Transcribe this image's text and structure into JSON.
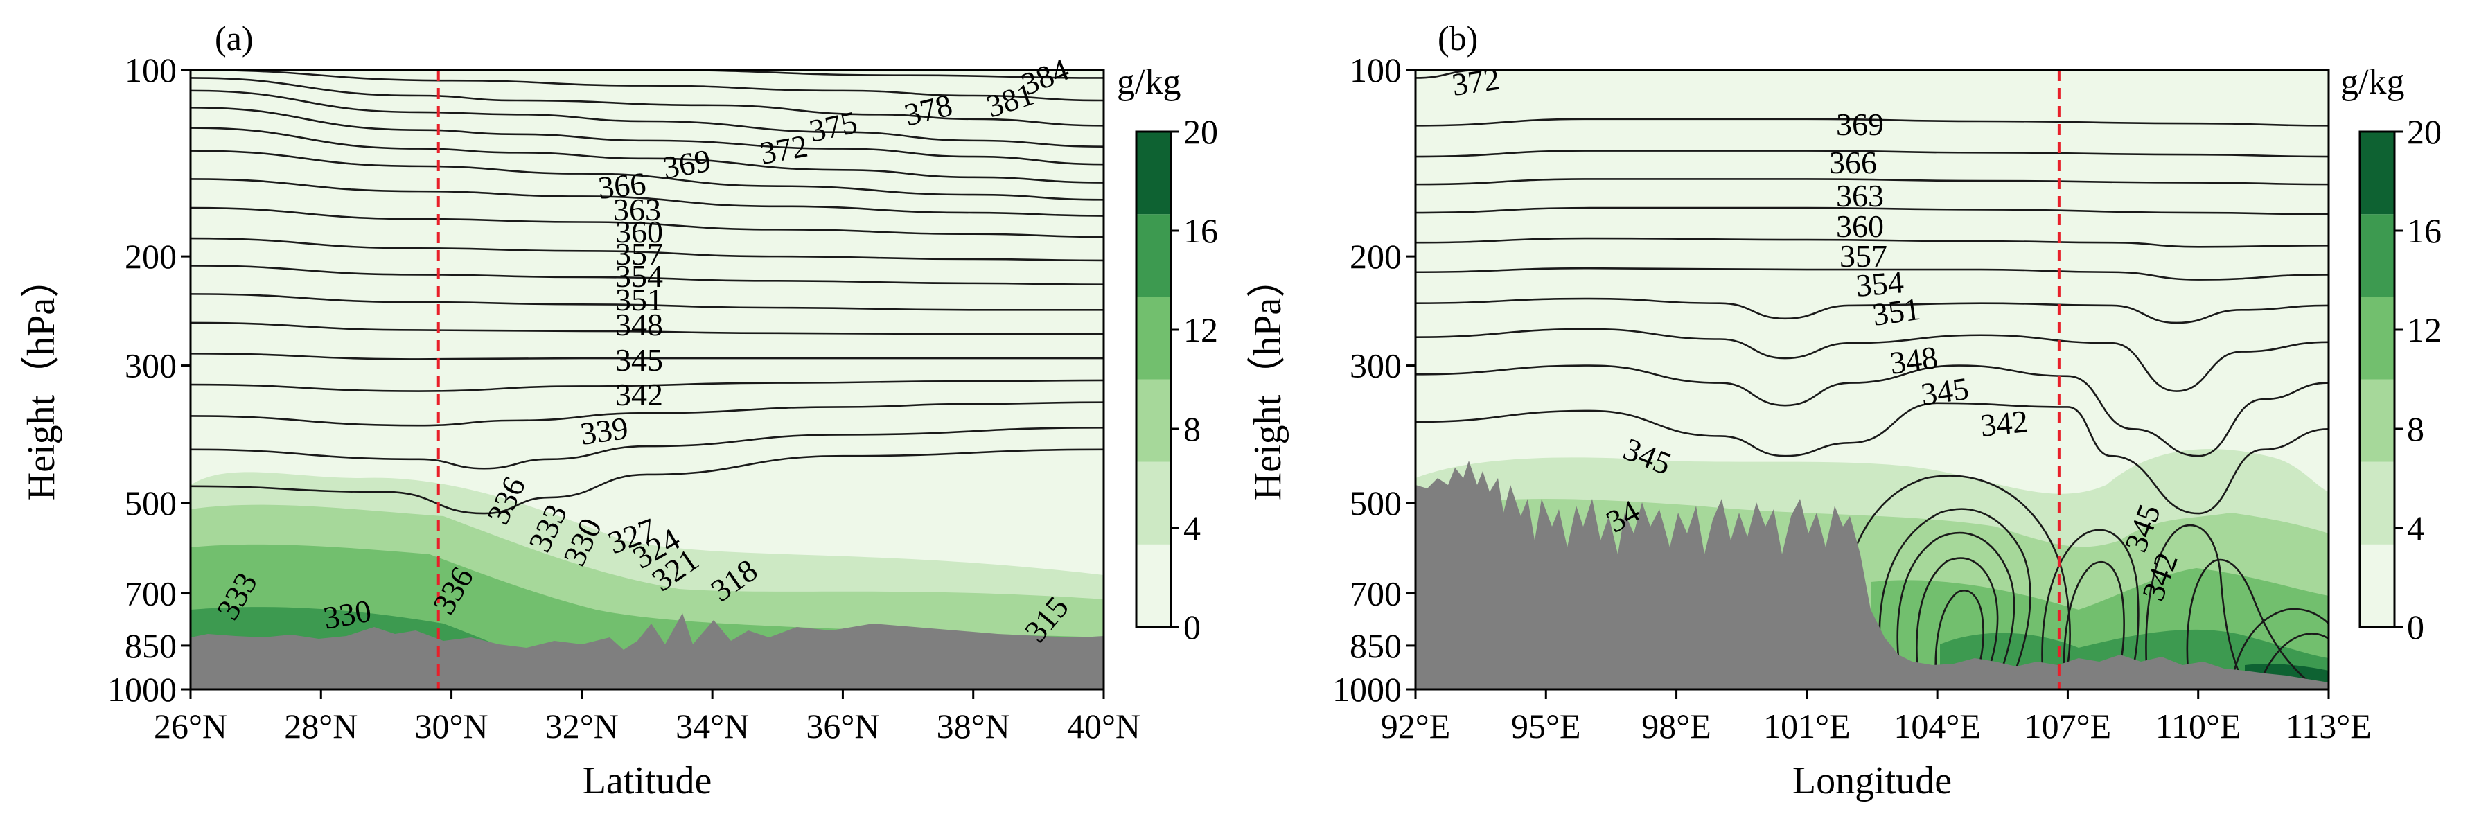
{
  "chart_data": [
    {
      "type": "contour",
      "panel_label": "(a)",
      "xlabel": "Latitude",
      "ylabel": "Height（hPa）",
      "x_ticks": [
        "26°N",
        "28°N",
        "30°N",
        "32°N",
        "34°N",
        "36°N",
        "38°N",
        "40°N"
      ],
      "x_tick_values": [
        26,
        28,
        30,
        32,
        34,
        36,
        38,
        40
      ],
      "xlim": [
        26,
        40
      ],
      "y_ticks": [
        "100",
        "200",
        "300",
        "500",
        "700",
        "850",
        "1000"
      ],
      "y_tick_values": [
        100,
        200,
        300,
        500,
        700,
        850,
        1000
      ],
      "ylim": [
        1000,
        100
      ],
      "y_scale": "log",
      "reference_line": {
        "x": 29.8,
        "style": "dashed",
        "color": "#e8202a"
      },
      "shading": {
        "variable_unit": "g/kg",
        "levels": [
          0,
          4,
          8,
          12,
          16,
          20
        ]
      },
      "contour_labels": [
        "369",
        "366",
        "363",
        "360",
        "357",
        "354",
        "351",
        "348",
        "345",
        "342",
        "339",
        "372",
        "375",
        "378",
        "381",
        "384",
        "336",
        "333",
        "330",
        "327",
        "324",
        "321",
        "318",
        "333",
        "330",
        "336",
        "315"
      ],
      "contours": [
        {
          "v": 384,
          "p": [
            [
              26,
              100
            ],
            [
              30,
              100
            ],
            [
              33,
              100
            ],
            [
              37,
              102
            ],
            [
              40,
              103
            ]
          ]
        },
        {
          "v": 381,
          "p": [
            [
              26,
              100
            ],
            [
              30,
              104
            ],
            [
              33,
              106
            ],
            [
              36,
              108
            ],
            [
              38,
              110
            ],
            [
              40,
              112
            ]
          ]
        },
        {
          "v": 378,
          "p": [
            [
              26,
              103
            ],
            [
              29.5,
              110
            ],
            [
              31,
              112
            ],
            [
              34,
              114
            ],
            [
              36.5,
              118
            ],
            [
              38,
              120
            ],
            [
              40,
              123
            ]
          ]
        },
        {
          "v": 375,
          "p": [
            [
              26,
              108
            ],
            [
              29.5,
              117
            ],
            [
              31,
              118
            ],
            [
              33,
              121
            ],
            [
              36,
              126
            ],
            [
              38,
              130
            ],
            [
              40,
              133
            ]
          ]
        },
        {
          "v": 372,
          "p": [
            [
              26,
              115
            ],
            [
              29.5,
              125
            ],
            [
              31,
              127
            ],
            [
              33,
              130
            ],
            [
              36,
              134
            ],
            [
              38,
              138
            ],
            [
              40,
              142
            ]
          ]
        },
        {
          "v": 369,
          "p": [
            [
              26,
              124
            ],
            [
              29.5,
              134
            ],
            [
              31,
              136
            ],
            [
              33,
              139
            ],
            [
              36,
              145
            ],
            [
              38,
              149
            ],
            [
              40,
              152
            ]
          ]
        },
        {
          "v": 366,
          "p": [
            [
              26,
              135
            ],
            [
              29.5,
              143
            ],
            [
              32,
              147
            ],
            [
              35,
              154
            ],
            [
              38,
              159
            ],
            [
              40,
              162
            ]
          ]
        },
        {
          "v": 363,
          "p": [
            [
              26,
              150
            ],
            [
              29.5,
              157
            ],
            [
              32,
              160
            ],
            [
              35,
              166
            ],
            [
              38,
              170
            ],
            [
              40,
              172
            ]
          ]
        },
        {
          "v": 360,
          "p": [
            [
              26,
              167
            ],
            [
              29.5,
              174
            ],
            [
              32,
              176
            ],
            [
              35,
              181
            ],
            [
              38,
              184
            ],
            [
              40,
              186
            ]
          ]
        },
        {
          "v": 357,
          "p": [
            [
              26,
              187
            ],
            [
              29.5,
              194
            ],
            [
              32,
              196
            ],
            [
              35,
              200
            ],
            [
              38,
              202
            ],
            [
              40,
              203
            ]
          ]
        },
        {
          "v": 354,
          "p": [
            [
              26,
              207
            ],
            [
              29.5,
              214
            ],
            [
              32,
              216
            ],
            [
              35,
              219
            ],
            [
              38,
              221
            ],
            [
              40,
              222
            ]
          ]
        },
        {
          "v": 351,
          "p": [
            [
              26,
              230
            ],
            [
              29.5,
              237
            ],
            [
              32,
              239
            ],
            [
              35,
              242
            ],
            [
              38,
              244
            ],
            [
              40,
              244
            ]
          ]
        },
        {
          "v": 348,
          "p": [
            [
              26,
              256
            ],
            [
              29.5,
              263
            ],
            [
              32,
              264
            ],
            [
              35,
              266
            ],
            [
              38,
              267
            ],
            [
              40,
              267
            ]
          ]
        },
        {
          "v": 345,
          "p": [
            [
              26,
              287
            ],
            [
              29.5,
              293
            ],
            [
              32,
              292
            ],
            [
              35,
              292
            ],
            [
              38,
              292
            ],
            [
              40,
              292
            ]
          ]
        },
        {
          "v": 342,
          "p": [
            [
              26,
              322
            ],
            [
              29.5,
              330
            ],
            [
              32,
              324
            ],
            [
              35,
              320
            ],
            [
              38,
              318
            ],
            [
              40,
              317
            ]
          ]
        },
        {
          "v": 339,
          "p": [
            [
              26,
              362
            ],
            [
              29.5,
              375
            ],
            [
              31,
              368
            ],
            [
              33,
              358
            ],
            [
              36,
              350
            ],
            [
              38,
              346
            ],
            [
              40,
              344
            ]
          ]
        },
        {
          "v": 336,
          "p": [
            [
              26,
              410
            ],
            [
              29.5,
              425
            ],
            [
              30.5,
              440
            ],
            [
              31.5,
              425
            ],
            [
              33,
              405
            ],
            [
              36,
              388
            ],
            [
              40,
              378
            ]
          ]
        },
        {
          "v": 333,
          "p": [
            [
              26,
              470
            ],
            [
              29,
              480
            ],
            [
              30.5,
              520
            ],
            [
              31.5,
              490
            ],
            [
              33,
              450
            ],
            [
              36,
              420
            ],
            [
              40,
              410
            ]
          ]
        }
      ]
    },
    {
      "type": "contour",
      "panel_label": "(b)",
      "xlabel": "Longitude",
      "ylabel": "Height（hPa）",
      "x_ticks": [
        "92°E",
        "95°E",
        "98°E",
        "101°E",
        "104°E",
        "107°E",
        "110°E",
        "113°E"
      ],
      "x_tick_values": [
        92,
        95,
        98,
        101,
        104,
        107,
        110,
        113
      ],
      "xlim": [
        92,
        113
      ],
      "y_ticks": [
        "100",
        "200",
        "300",
        "500",
        "700",
        "850",
        "1000"
      ],
      "y_tick_values": [
        100,
        200,
        300,
        500,
        700,
        850,
        1000
      ],
      "ylim": [
        1000,
        100
      ],
      "y_scale": "log",
      "reference_line": {
        "x": 106.8,
        "style": "dashed",
        "color": "#e8202a"
      },
      "shading": {
        "variable_unit": "g/kg",
        "levels": [
          0,
          4,
          8,
          12,
          16,
          20
        ]
      },
      "contour_labels": [
        "372",
        "369",
        "366",
        "363",
        "360",
        "357",
        "354",
        "351",
        "348",
        "345",
        "342",
        "345",
        "34",
        "345",
        "342"
      ],
      "contours": [
        {
          "v": 372,
          "p": [
            [
              92,
              103
            ],
            [
              93.5,
              100
            ]
          ]
        },
        {
          "v": 369,
          "p": [
            [
              92,
              123
            ],
            [
              96,
              120
            ],
            [
              101,
              120
            ],
            [
              105,
              121
            ],
            [
              110,
              122
            ],
            [
              113,
              123
            ]
          ]
        },
        {
          "v": 366,
          "p": [
            [
              92,
              138
            ],
            [
              96,
              135
            ],
            [
              101,
              135
            ],
            [
              105,
              136
            ],
            [
              110,
              137
            ],
            [
              113,
              138
            ]
          ]
        },
        {
          "v": 363,
          "p": [
            [
              92,
              153
            ],
            [
              96,
              150
            ],
            [
              101,
              150
            ],
            [
              105,
              151
            ],
            [
              110,
              152
            ],
            [
              113,
              153
            ]
          ]
        },
        {
          "v": 360,
          "p": [
            [
              92,
              170
            ],
            [
              96,
              167
            ],
            [
              101,
              167
            ],
            [
              105,
              168
            ],
            [
              110,
              170
            ],
            [
              113,
              171
            ]
          ]
        },
        {
          "v": 357,
          "p": [
            [
              92,
              190
            ],
            [
              96,
              187
            ],
            [
              101,
              188
            ],
            [
              105,
              189
            ],
            [
              108,
              190
            ],
            [
              110,
              193
            ],
            [
              113,
              192
            ]
          ]
        },
        {
          "v": 354,
          "p": [
            [
              92,
              212
            ],
            [
              96,
              209
            ],
            [
              101,
              210
            ],
            [
              105,
              210
            ],
            [
              108,
              212
            ],
            [
              110,
              218
            ],
            [
              113,
              214
            ]
          ]
        },
        {
          "v": 351,
          "p": [
            [
              92,
              238
            ],
            [
              96,
              234
            ],
            [
              99,
              238
            ],
            [
              100.5,
              252
            ],
            [
              102,
              240
            ],
            [
              105,
              238
            ],
            [
              108,
              240
            ],
            [
              109.5,
              256
            ],
            [
              111,
              244
            ],
            [
              113,
              240
            ]
          ]
        },
        {
          "v": 348,
          "p": [
            [
              92,
              270
            ],
            [
              96,
              262
            ],
            [
              99,
              272
            ],
            [
              100.5,
              292
            ],
            [
              102,
              276
            ],
            [
              105,
              268
            ],
            [
              108,
              276
            ],
            [
              109.5,
              330
            ],
            [
              111,
              285
            ],
            [
              113,
              275
            ]
          ]
        },
        {
          "v": 345,
          "p": [
            [
              92,
              310
            ],
            [
              96,
              300
            ],
            [
              99,
              320
            ],
            [
              100.5,
              348
            ],
            [
              102,
              320
            ],
            [
              104.5,
              300
            ],
            [
              107,
              312
            ],
            [
              108.5,
              380
            ],
            [
              110,
              420
            ],
            [
              111.5,
              340
            ],
            [
              113,
              320
            ]
          ]
        },
        {
          "v": 342,
          "p": [
            [
              92,
              370
            ],
            [
              96,
              355
            ],
            [
              99,
              390
            ],
            [
              100.5,
              420
            ],
            [
              102,
              400
            ],
            [
              104,
              345
            ],
            [
              107,
              350
            ],
            [
              108,
              420
            ],
            [
              110,
              520
            ],
            [
              111.5,
              410
            ],
            [
              113,
              380
            ]
          ]
        }
      ]
    }
  ],
  "colorbar": {
    "unit": "g/kg",
    "ticks": [
      "0",
      "4",
      "8",
      "12",
      "16",
      "20"
    ],
    "colors": [
      "#eef8e9",
      "#cde9c4",
      "#a6d89a",
      "#72bf6e",
      "#3d9a50",
      "#0e6232"
    ]
  },
  "colors": {
    "terrain": "#7f7f7f",
    "contour": "#1a1a1a",
    "refline": "#e8202a"
  }
}
